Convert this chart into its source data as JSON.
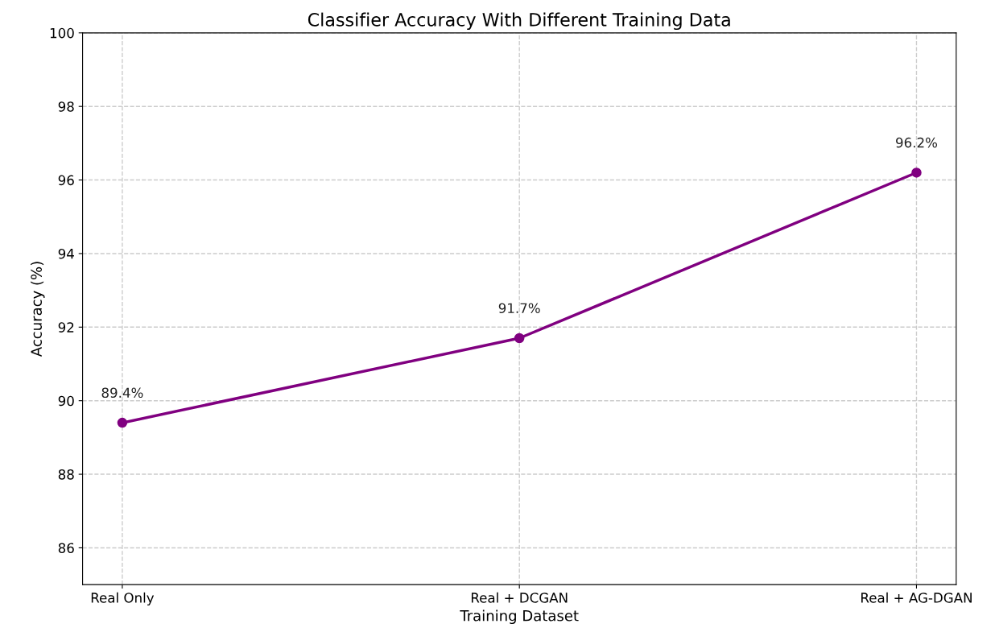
{
  "chart_data": {
    "type": "line",
    "title": "Classifier Accuracy With Different Training Data",
    "xlabel": "Training Dataset",
    "ylabel": "Accuracy (%)",
    "categories": [
      "Real Only",
      "Real + DCGAN",
      "Real + AG-DGAN"
    ],
    "series": [
      {
        "color": "#800080",
        "values": [
          89.4,
          91.7,
          96.2
        ],
        "value_labels": [
          "89.4%",
          "91.7%",
          "96.2%"
        ]
      }
    ],
    "ylim": [
      85,
      100
    ],
    "yticks": [
      86,
      88,
      90,
      92,
      94,
      96,
      98,
      100
    ],
    "grid": true,
    "marker": "circle",
    "line_style": "solid"
  }
}
